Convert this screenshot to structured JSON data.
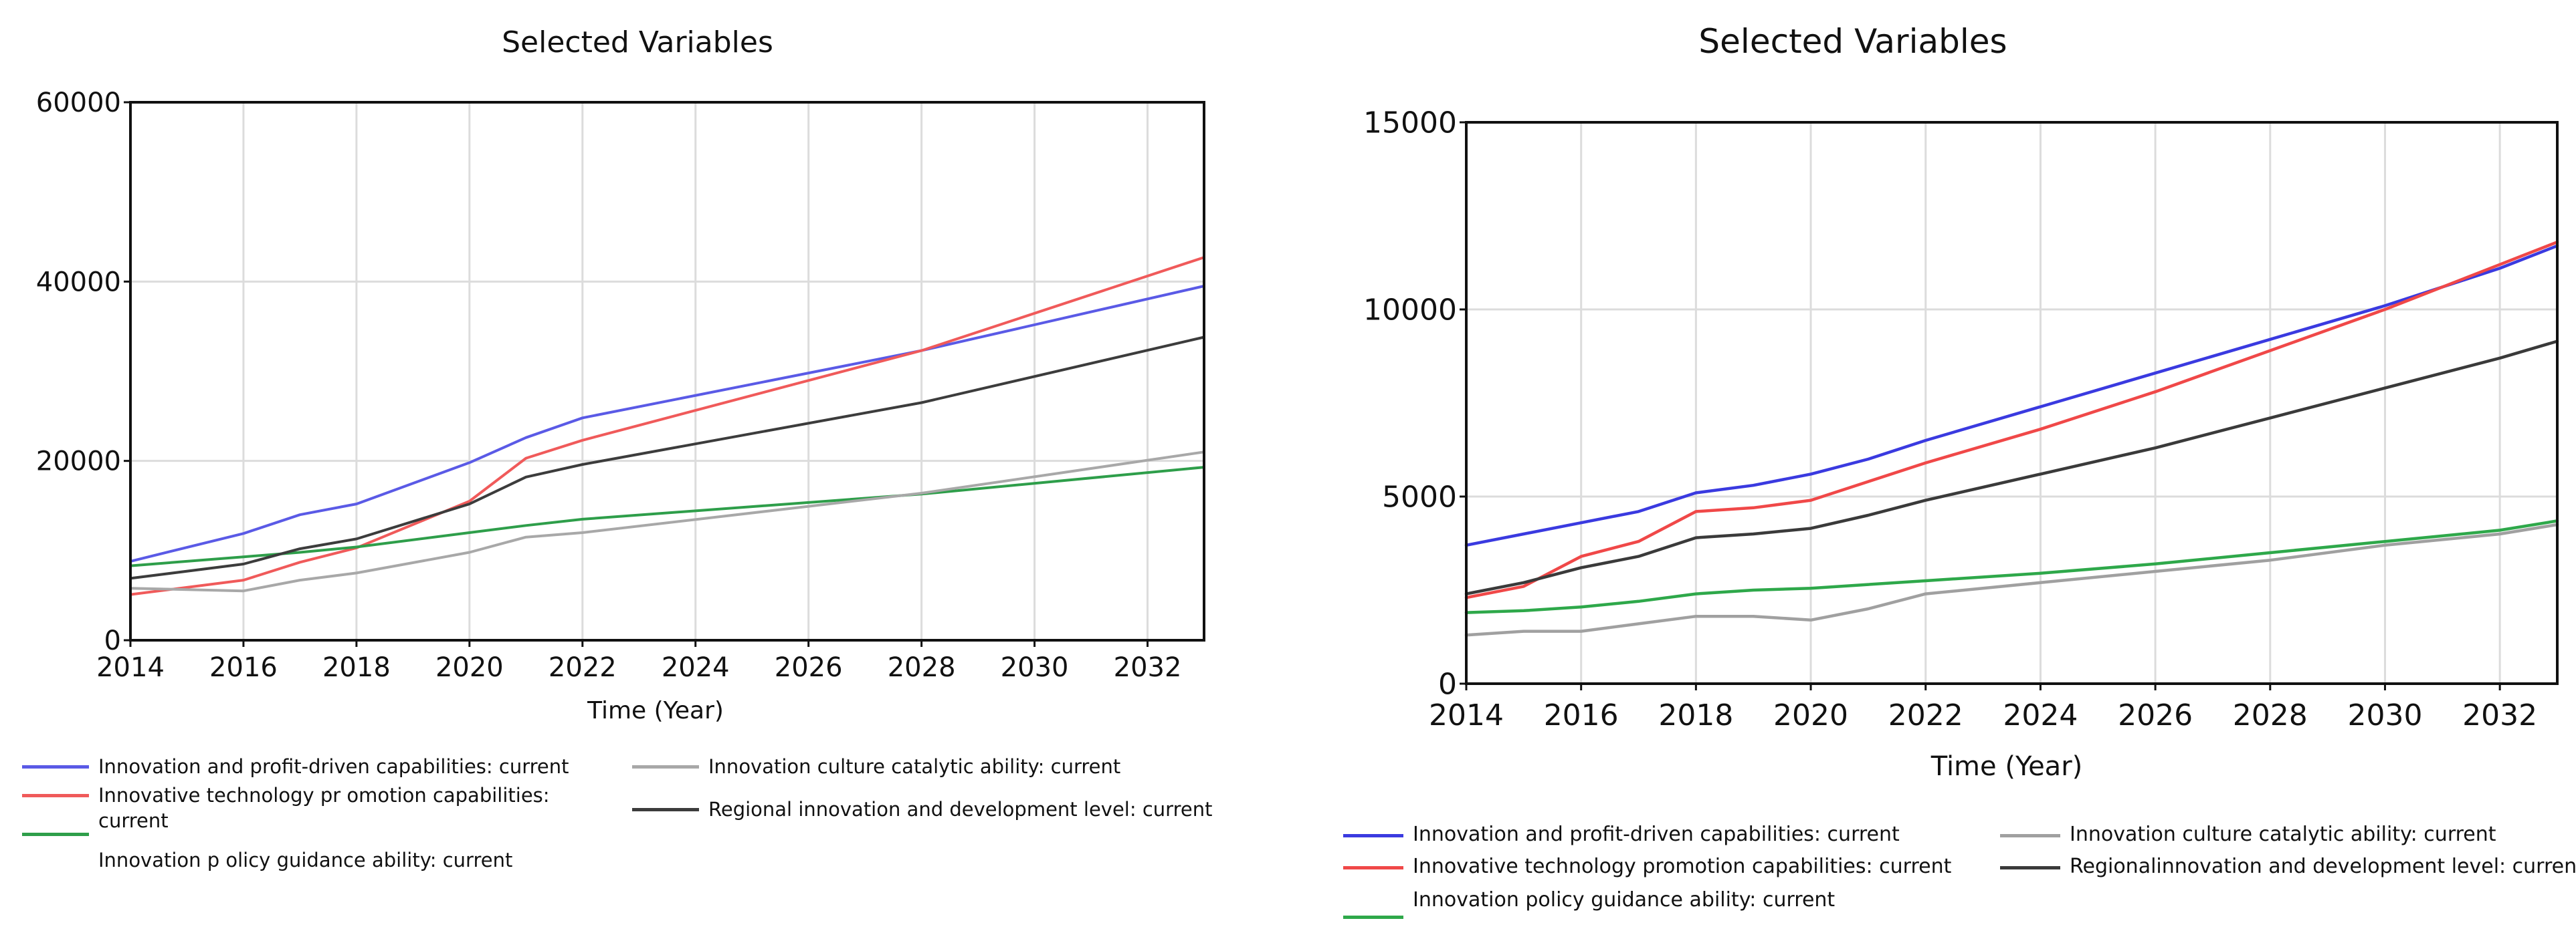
{
  "chart_data": [
    {
      "type": "line",
      "title": "Selected Variables",
      "xlabel": "Time (Year)",
      "ylabel": "",
      "xlim": [
        2014,
        2033
      ],
      "ylim": [
        0,
        60000
      ],
      "x_ticks": [
        2014,
        2016,
        2018,
        2020,
        2022,
        2024,
        2026,
        2028,
        2030,
        2032
      ],
      "y_ticks": [
        0,
        20000,
        40000,
        60000
      ],
      "grid": true,
      "legend_position": "bottom",
      "x": [
        2014,
        2016,
        2017,
        2018,
        2020,
        2021,
        2022,
        2028,
        2033
      ],
      "series": [
        {
          "name": "Innovation and profit-driven capabilities: current",
          "color": "#5a5ae6",
          "values": [
            8800,
            11900,
            14000,
            15200,
            19800,
            22600,
            24800,
            32300,
            39500
          ]
        },
        {
          "name": "Innovative technology pr omotion capabilities: current",
          "color": "#f05a5a",
          "values": [
            5100,
            6700,
            8700,
            10300,
            15500,
            20300,
            22300,
            32300,
            42700
          ]
        },
        {
          "name": "Innovation p olicy guidance ability: current",
          "color": "#2e9e4a",
          "values": [
            8300,
            9300,
            9800,
            10400,
            12000,
            12800,
            13500,
            16300,
            19300
          ]
        },
        {
          "name": "Innovation culture catalytic ability: current",
          "color": "#a8a8a8",
          "values": [
            5800,
            5500,
            6700,
            7500,
            9800,
            11500,
            12000,
            16400,
            21000
          ]
        },
        {
          "name": "Regional innovation and development level: current",
          "color": "#3c3c3c",
          "values": [
            6900,
            8500,
            10200,
            11300,
            15200,
            18200,
            19600,
            26500,
            33800
          ]
        }
      ]
    },
    {
      "type": "line",
      "title": "Selected Variables",
      "xlabel": "Time (Year)",
      "ylabel": "",
      "xlim": [
        2014,
        2033
      ],
      "ylim": [
        0,
        15000
      ],
      "x_ticks": [
        2014,
        2016,
        2018,
        2020,
        2022,
        2024,
        2026,
        2028,
        2030,
        2032
      ],
      "y_ticks": [
        0,
        5000,
        10000,
        15000
      ],
      "grid": true,
      "legend_position": "bottom",
      "x": [
        2014,
        2015,
        2016,
        2017,
        2018,
        2019,
        2020,
        2021,
        2022,
        2024,
        2026,
        2028,
        2030,
        2032,
        2033
      ],
      "series": [
        {
          "name": "Innovation and profit-driven capabilities: current",
          "color": "#3a3ae0",
          "values": [
            3700,
            4000,
            4300,
            4600,
            5100,
            5300,
            5600,
            6000,
            6500,
            7400,
            8300,
            9200,
            10100,
            11100,
            11700
          ]
        },
        {
          "name": "Innovative technology promotion capabilities: current",
          "color": "#f04848",
          "values": [
            2300,
            2600,
            3400,
            3800,
            4600,
            4700,
            4900,
            5400,
            5900,
            6800,
            7800,
            8900,
            10000,
            11200,
            11800
          ]
        },
        {
          "name": "Innovation policy guidance ability: current",
          "color": "#2ea84a",
          "values": [
            1900,
            1950,
            2050,
            2200,
            2400,
            2500,
            2550,
            2650,
            2750,
            2950,
            3200,
            3500,
            3800,
            4100,
            4350
          ]
        },
        {
          "name": "Innovation culture catalytic ability: current",
          "color": "#a0a0a0",
          "values": [
            1300,
            1400,
            1400,
            1600,
            1800,
            1800,
            1700,
            2000,
            2400,
            2700,
            3000,
            3300,
            3700,
            4000,
            4250
          ]
        },
        {
          "name": "Regionalinnovation and development level: current",
          "color": "#3a3a3a",
          "values": [
            2400,
            2700,
            3100,
            3400,
            3900,
            4000,
            4150,
            4500,
            4900,
            5600,
            6300,
            7100,
            7900,
            8700,
            9150
          ]
        }
      ]
    }
  ]
}
